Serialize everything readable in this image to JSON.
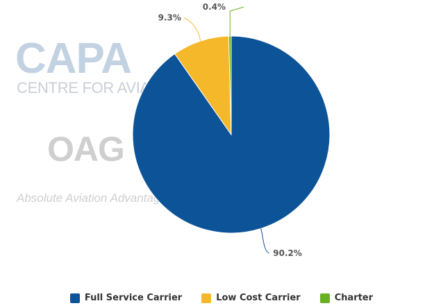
{
  "watermarks": {
    "capa": "CAPA",
    "capa_sub": "CENTRE FOR AVIATION",
    "oag": "OAG",
    "oag_sub": "Absolute Aviation Advantage"
  },
  "chart_data": {
    "type": "pie",
    "title": "",
    "start_angle_deg": 0,
    "slices": [
      {
        "name": "Full Service Carrier",
        "value": 90.2,
        "label": "90.2%",
        "color": "#0d5398"
      },
      {
        "name": "Low Cost Carrier",
        "value": 9.3,
        "label": "9.3%",
        "color": "#f4b82a"
      },
      {
        "name": "Charter",
        "value": 0.4,
        "label": "0.4%",
        "color": "#6ab023"
      }
    ],
    "legend_position": "bottom"
  }
}
